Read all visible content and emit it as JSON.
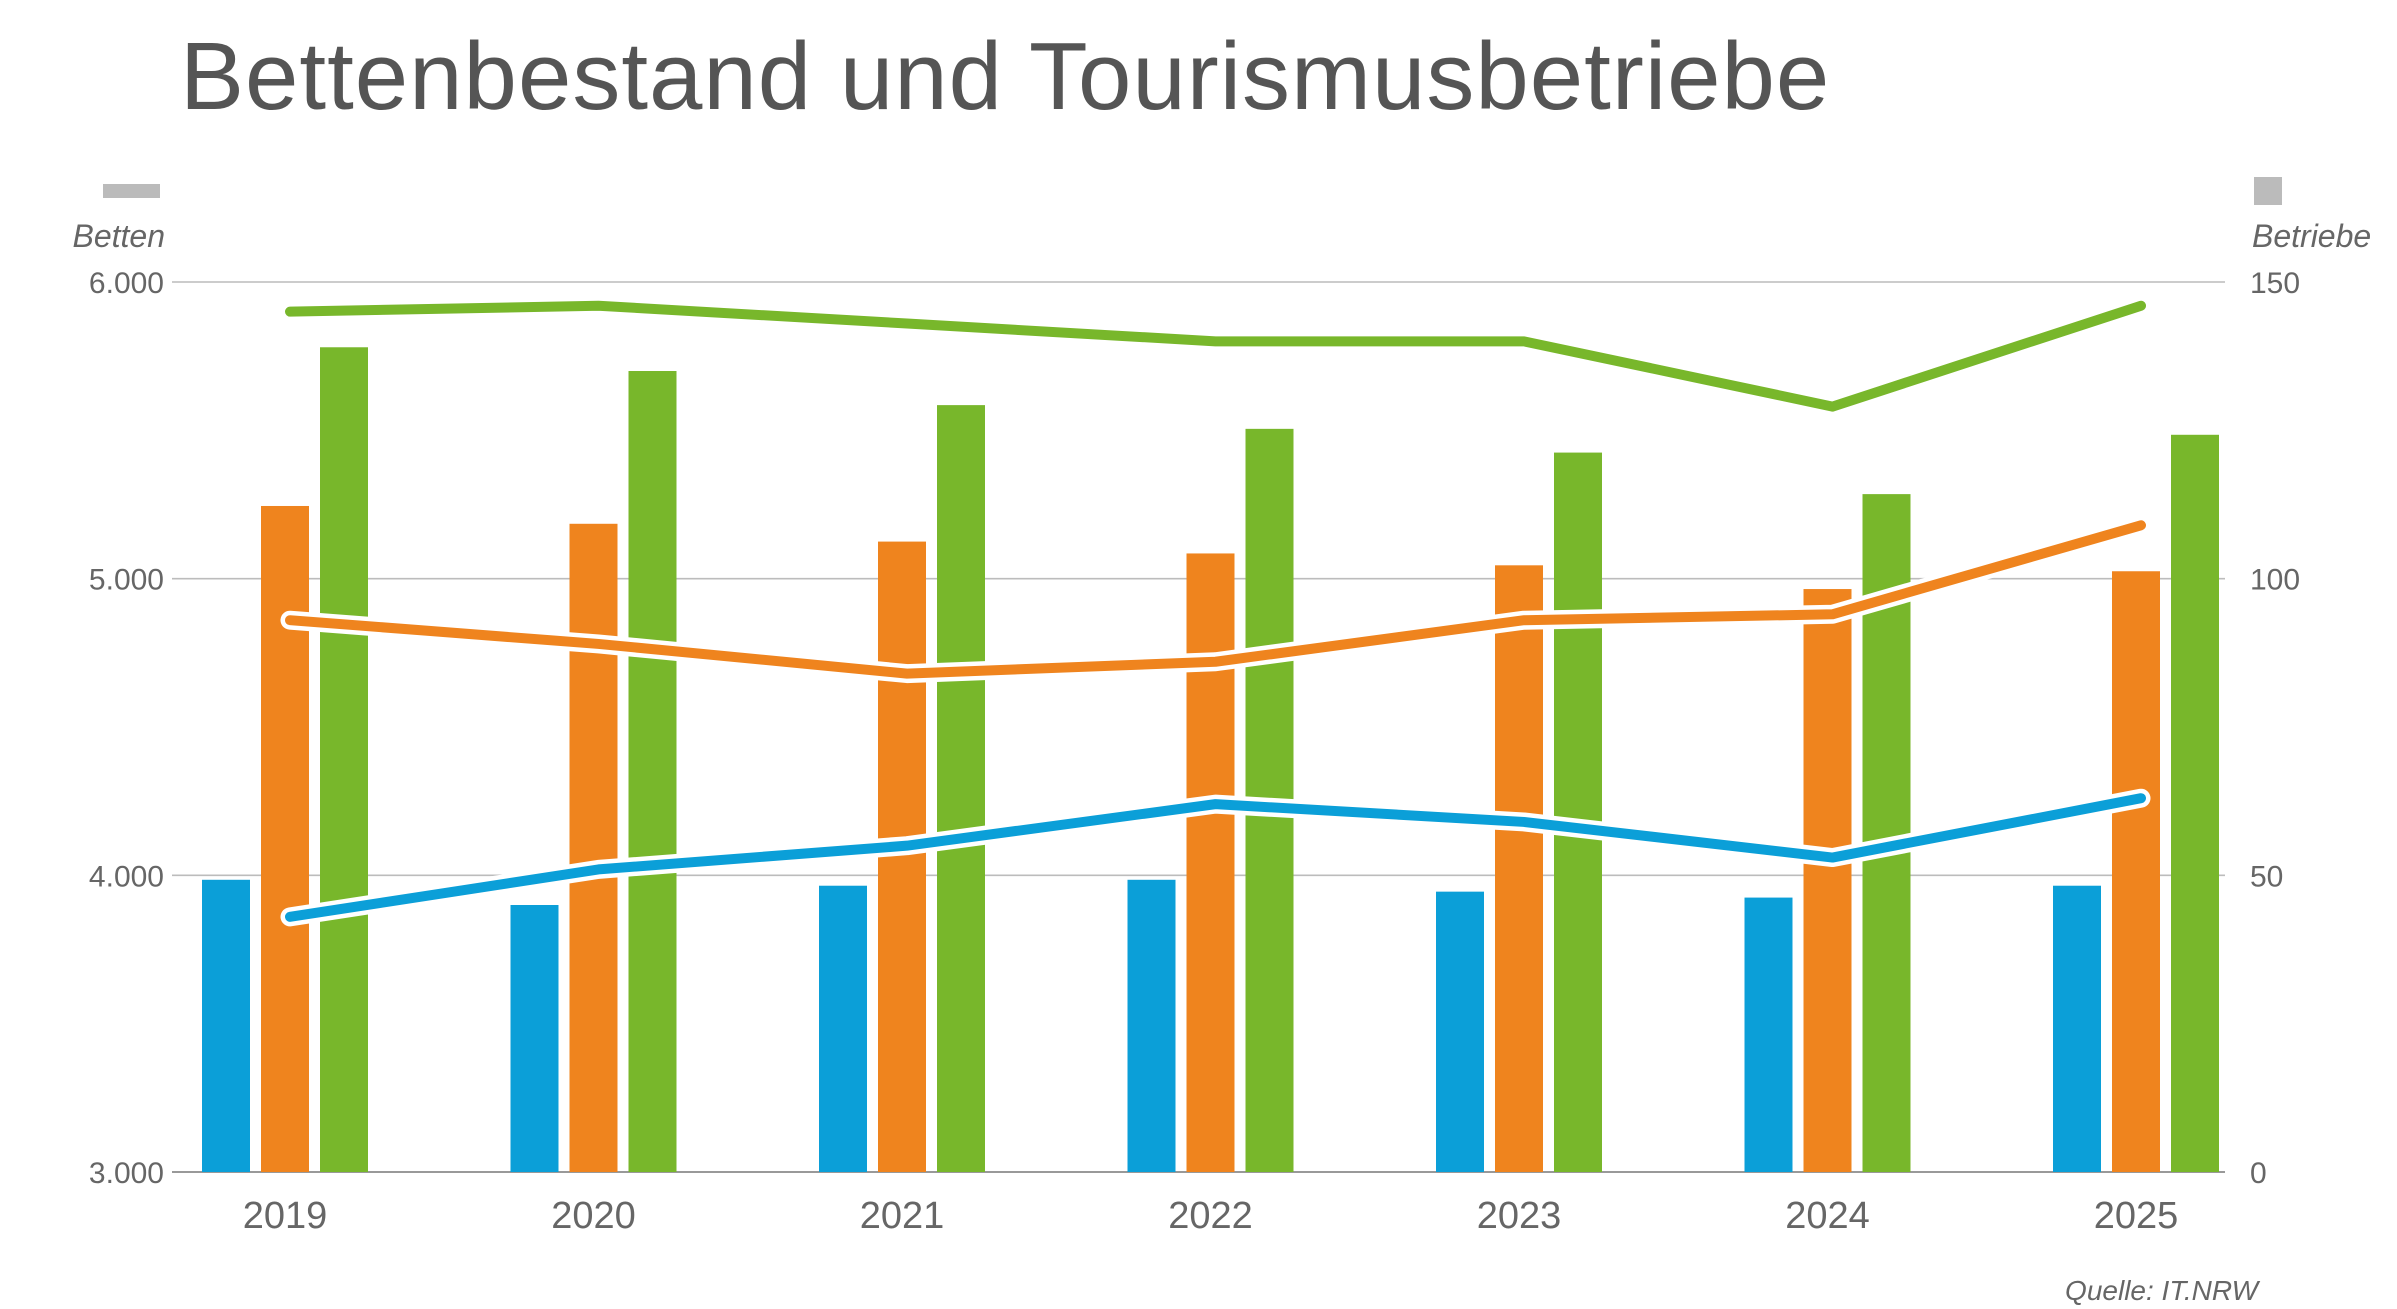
{
  "chart_data": {
    "type": "bar",
    "title": "Bettenbestand und Tourismusbetriebe",
    "source": "Quelle: IT.NRW",
    "categories": [
      "2019",
      "2020",
      "2021",
      "2022",
      "2023",
      "2024",
      "2025"
    ],
    "left_axis": {
      "label": "Betten",
      "min": 3000,
      "max": 6000,
      "ticks": [
        3000,
        4000,
        5000,
        6000
      ],
      "tick_labels": [
        "3.000",
        "4.000",
        "5.000",
        "6.000"
      ]
    },
    "right_axis": {
      "label": "Betriebe",
      "min": 0,
      "max": 150,
      "ticks": [
        0,
        50,
        100,
        150
      ],
      "tick_labels": [
        "0",
        "50",
        "100",
        "150"
      ]
    },
    "grid": true,
    "legend": "none",
    "bar_series": [
      {
        "color": "#0b9fd8",
        "axis": "left",
        "values": [
          3985,
          3900,
          3965,
          3985,
          3945,
          3925,
          3965
        ]
      },
      {
        "color": "#ef841e",
        "axis": "left",
        "values": [
          5245,
          5185,
          5125,
          5085,
          5045,
          4965,
          5025
        ]
      },
      {
        "color": "#78b72b",
        "axis": "left",
        "values": [
          5780,
          5700,
          5585,
          5505,
          5425,
          5285,
          5485
        ]
      }
    ],
    "line_series": [
      {
        "color": "#0b9fd8",
        "axis": "right",
        "values": [
          43,
          51,
          55,
          62,
          59,
          53,
          63
        ]
      },
      {
        "color": "#ef841e",
        "axis": "right",
        "values": [
          93,
          89,
          84,
          86,
          93,
          94,
          109
        ]
      },
      {
        "color": "#78b72b",
        "axis": "right",
        "values": [
          145,
          146,
          143,
          140,
          140,
          129,
          146
        ]
      }
    ]
  },
  "legend_swatches": {
    "left_color": "#bbbbbb",
    "right_color": "#bbbbbb"
  }
}
